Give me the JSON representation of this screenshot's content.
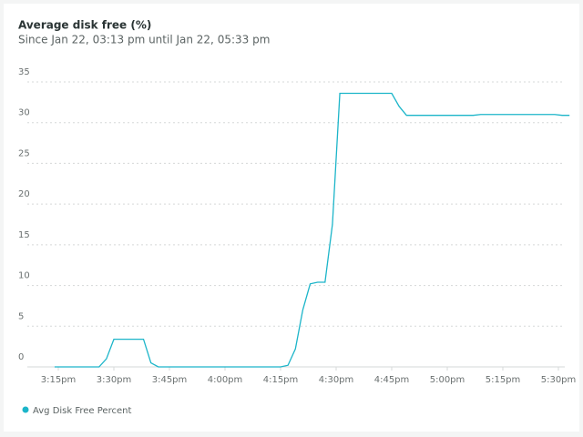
{
  "chart_data": {
    "type": "line",
    "title": "Average disk free (%)",
    "subtitle": "Since Jan 22, 03:13 pm until Jan 22, 05:33 pm",
    "x": [
      914,
      926,
      928,
      930,
      938,
      940,
      942,
      975,
      977,
      979,
      981,
      983,
      985,
      987,
      989,
      991,
      1005,
      1007,
      1009,
      1027,
      1029,
      1049,
      1051,
      1053
    ],
    "series": [
      {
        "name": "Avg Disk Free Percent",
        "color": "#1cb5c9",
        "values": [
          0,
          0,
          1,
          3.4,
          3.4,
          0.5,
          0,
          0,
          0.2,
          2.2,
          7,
          10.2,
          10.4,
          10.4,
          17.5,
          33.6,
          33.6,
          32,
          30.9,
          30.9,
          31,
          31,
          30.9,
          30.9
        ]
      }
    ],
    "xlim": [
      913,
      1053
    ],
    "xticks": [
      {
        "value": 915,
        "label": "3:15pm"
      },
      {
        "value": 930,
        "label": "3:30pm"
      },
      {
        "value": 945,
        "label": "3:45pm"
      },
      {
        "value": 960,
        "label": "4:00pm"
      },
      {
        "value": 975,
        "label": "4:15pm"
      },
      {
        "value": 990,
        "label": "4:30pm"
      },
      {
        "value": 1005,
        "label": "4:45pm"
      },
      {
        "value": 1020,
        "label": "5:00pm"
      },
      {
        "value": 1035,
        "label": "5:15pm"
      },
      {
        "value": 1050,
        "label": "5:30pm"
      }
    ],
    "ylim": [
      0,
      35
    ],
    "yticks": [
      0,
      5,
      10,
      15,
      20,
      25,
      30,
      35
    ],
    "grid": true
  }
}
